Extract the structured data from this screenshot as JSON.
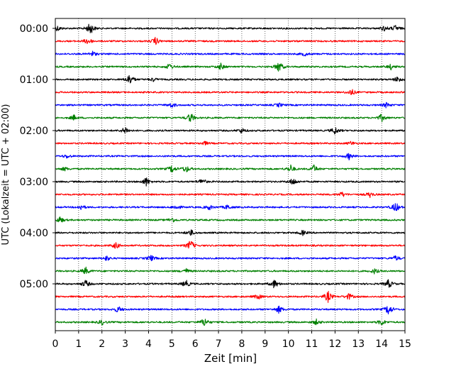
{
  "chart_data": {
    "type": "line",
    "title": "",
    "xlabel": "Zeit  [min]",
    "ylabel": "UTC (Lokalzeit = UTC + 02:00)",
    "xlim": [
      0,
      15
    ],
    "x_ticks": [
      "0",
      "1",
      "2",
      "3",
      "4",
      "5",
      "6",
      "7",
      "8",
      "9",
      "10",
      "11",
      "12",
      "13",
      "14",
      "15"
    ],
    "y_tick_labels": [
      "00:00",
      "01:00",
      "02:00",
      "03:00",
      "04:00",
      "05:00"
    ],
    "row_minutes": 15,
    "rows_per_hour": 4,
    "grid": "vertical dotted",
    "series_colors": [
      "#000000",
      "#ff0000",
      "#0000ff",
      "#008000"
    ],
    "traces": [
      {
        "start": "00:00",
        "events": [
          [
            0.1,
            0.4
          ],
          [
            1.5,
            1.0
          ],
          [
            14.1,
            0.4
          ],
          [
            14.6,
            0.5
          ]
        ]
      },
      {
        "start": "00:15",
        "events": [
          [
            1.4,
            0.6
          ],
          [
            4.3,
            0.6
          ]
        ]
      },
      {
        "start": "00:30",
        "events": [
          [
            1.6,
            0.4
          ],
          [
            10.7,
            0.3
          ]
        ]
      },
      {
        "start": "00:45",
        "events": [
          [
            4.9,
            0.5
          ],
          [
            7.1,
            0.5
          ],
          [
            9.6,
            0.9
          ],
          [
            14.4,
            0.4
          ]
        ]
      },
      {
        "start": "01:00",
        "events": [
          [
            3.2,
            0.9
          ],
          [
            4.2,
            0.3
          ],
          [
            14.7,
            0.5
          ]
        ]
      },
      {
        "start": "01:15",
        "events": [
          [
            12.7,
            0.5
          ]
        ]
      },
      {
        "start": "01:30",
        "events": [
          [
            5.0,
            0.4
          ],
          [
            9.6,
            0.3
          ],
          [
            14.2,
            0.4
          ]
        ]
      },
      {
        "start": "01:45",
        "events": [
          [
            0.8,
            0.4
          ],
          [
            5.8,
            0.8
          ],
          [
            14.0,
            0.6
          ]
        ]
      },
      {
        "start": "02:00",
        "events": [
          [
            3.0,
            0.6
          ],
          [
            8.0,
            0.4
          ],
          [
            12.0,
            0.6
          ]
        ]
      },
      {
        "start": "02:15",
        "events": [
          [
            6.4,
            0.3
          ],
          [
            12.7,
            0.3
          ]
        ]
      },
      {
        "start": "02:30",
        "events": [
          [
            0.5,
            0.3
          ],
          [
            12.6,
            0.5
          ]
        ]
      },
      {
        "start": "02:45",
        "events": [
          [
            0.4,
            0.3
          ],
          [
            5.0,
            0.6
          ],
          [
            5.6,
            0.6
          ],
          [
            10.1,
            0.6
          ],
          [
            11.1,
            0.6
          ]
        ]
      },
      {
        "start": "03:00",
        "events": [
          [
            3.9,
            0.7
          ],
          [
            6.3,
            0.5
          ],
          [
            10.2,
            0.6
          ]
        ]
      },
      {
        "start": "03:15",
        "events": [
          [
            12.3,
            0.4
          ],
          [
            13.5,
            0.4
          ]
        ]
      },
      {
        "start": "03:30",
        "events": [
          [
            1.1,
            0.4
          ],
          [
            5.2,
            0.4
          ],
          [
            6.6,
            0.4
          ],
          [
            7.4,
            0.4
          ],
          [
            14.6,
            0.8
          ]
        ]
      },
      {
        "start": "03:45",
        "events": [
          [
            0.2,
            0.5
          ],
          [
            5.0,
            0.4
          ]
        ]
      },
      {
        "start": "04:00",
        "events": [
          [
            5.8,
            0.5
          ],
          [
            10.6,
            0.4
          ]
        ]
      },
      {
        "start": "04:15",
        "events": [
          [
            2.6,
            0.5
          ],
          [
            5.8,
            0.9
          ]
        ]
      },
      {
        "start": "04:30",
        "events": [
          [
            2.2,
            0.4
          ],
          [
            4.1,
            0.5
          ],
          [
            14.6,
            0.4
          ]
        ]
      },
      {
        "start": "04:45",
        "events": [
          [
            1.3,
            0.6
          ],
          [
            5.6,
            0.4
          ],
          [
            13.7,
            0.4
          ]
        ]
      },
      {
        "start": "05:00",
        "events": [
          [
            1.3,
            0.6
          ],
          [
            5.6,
            0.6
          ],
          [
            9.4,
            0.7
          ],
          [
            14.3,
            0.7
          ]
        ]
      },
      {
        "start": "05:15",
        "events": [
          [
            8.7,
            0.4
          ],
          [
            11.7,
            0.9
          ],
          [
            12.6,
            0.5
          ]
        ]
      },
      {
        "start": "05:30",
        "events": [
          [
            2.7,
            0.5
          ],
          [
            9.6,
            0.6
          ],
          [
            14.3,
            0.9
          ]
        ]
      },
      {
        "start": "05:45",
        "events": [
          [
            2.0,
            0.4
          ],
          [
            6.4,
            0.7
          ],
          [
            11.2,
            0.4
          ],
          [
            14.0,
            0.5
          ]
        ]
      }
    ]
  }
}
